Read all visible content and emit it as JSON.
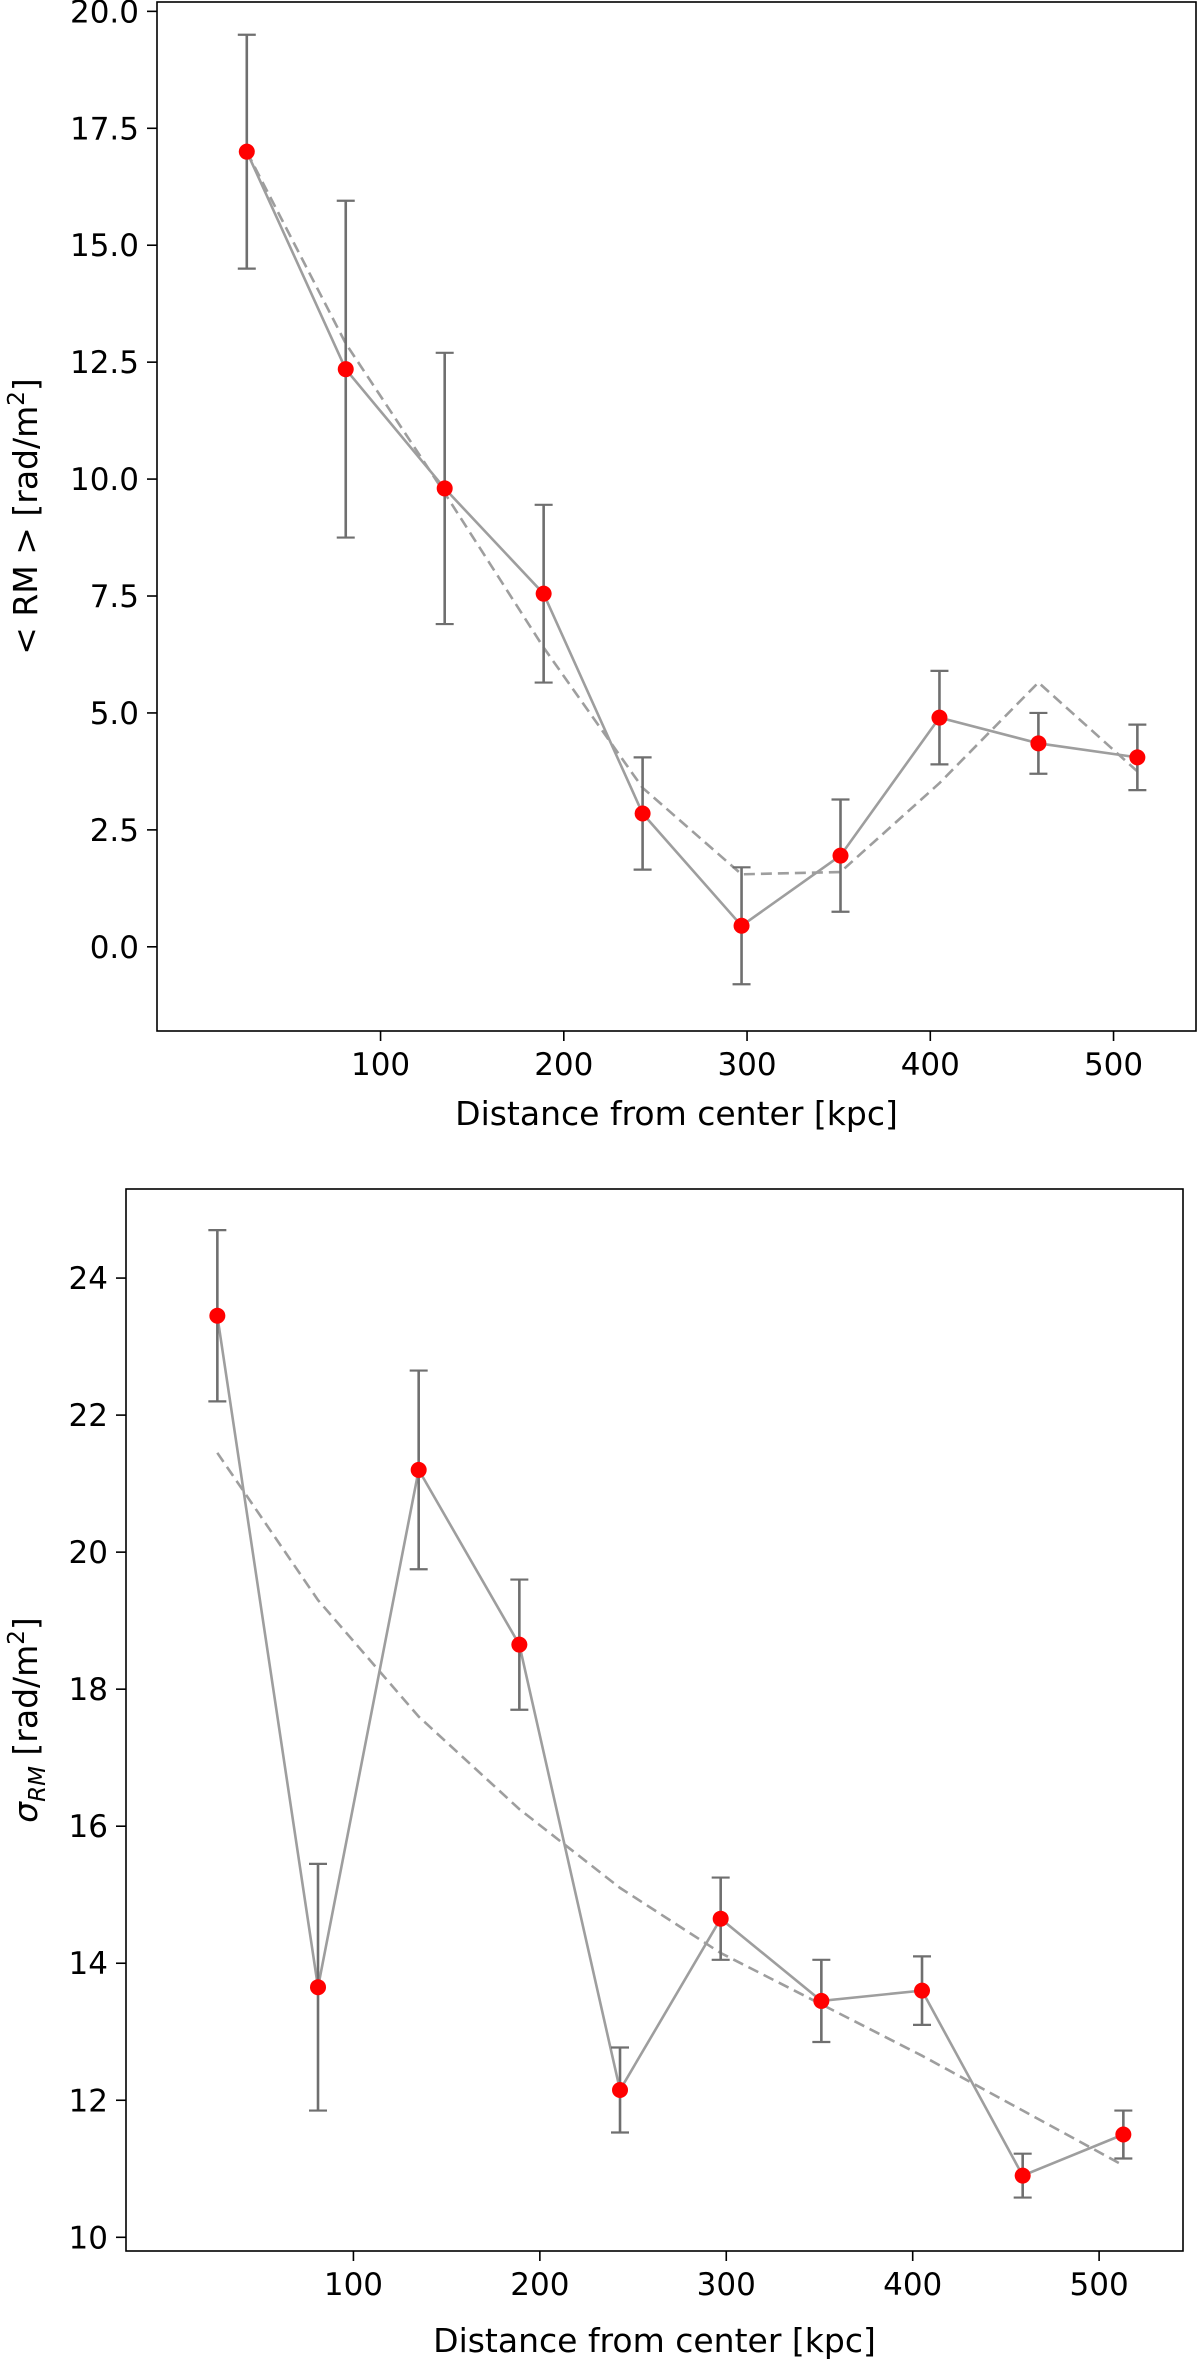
{
  "chart_data": [
    {
      "type": "line",
      "xlabel": "Distance from center [kpc]",
      "ylabel_parts": [
        "< RM > [rad/m",
        "2",
        "]"
      ],
      "xlim": [
        -22,
        545
      ],
      "ylim": [
        -1.8,
        20.2
      ],
      "xticks": [
        100,
        200,
        300,
        400,
        500
      ],
      "yticks": [
        0.0,
        2.5,
        5.0,
        7.5,
        10.0,
        12.5,
        15.0,
        17.5,
        20.0
      ],
      "ytick_decimals": 1,
      "grid": false,
      "series": [
        {
          "style": "solid-with-markers-and-errorbars",
          "color": "#9e9e9e",
          "marker_color": "#ff0000",
          "x": [
            27,
            81,
            135,
            189,
            243,
            297,
            351,
            405,
            459,
            513
          ],
          "y": [
            17.0,
            12.35,
            9.8,
            7.55,
            2.85,
            0.45,
            1.95,
            4.9,
            4.35,
            4.05
          ],
          "yerr": [
            2.5,
            3.6,
            2.9,
            1.9,
            1.2,
            1.25,
            1.2,
            1.0,
            0.65,
            0.7
          ]
        },
        {
          "style": "dashed",
          "color": "#9e9e9e",
          "x": [
            27,
            81,
            135,
            189,
            243,
            297,
            351,
            405,
            459,
            513
          ],
          "y": [
            17.0,
            12.9,
            9.7,
            6.4,
            3.4,
            1.55,
            1.6,
            3.5,
            5.65,
            3.75
          ]
        }
      ]
    },
    {
      "type": "line",
      "xlabel": "Distance from center [kpc]",
      "ylabel_parts": [
        "σ",
        "RM",
        " [rad/m",
        "2",
        "]"
      ],
      "xlim": [
        -22,
        545
      ],
      "ylim": [
        9.8,
        25.3
      ],
      "xticks": [
        100,
        200,
        300,
        400,
        500
      ],
      "yticks": [
        10,
        12,
        14,
        16,
        18,
        20,
        22,
        24
      ],
      "ytick_decimals": 0,
      "grid": false,
      "series": [
        {
          "style": "solid-with-markers-and-errorbars",
          "color": "#9e9e9e",
          "marker_color": "#ff0000",
          "x": [
            27,
            81,
            135,
            189,
            243,
            297,
            351,
            405,
            459,
            513
          ],
          "y": [
            23.45,
            13.65,
            21.2,
            18.65,
            12.15,
            14.65,
            13.45,
            13.6,
            10.9,
            11.5
          ],
          "yerr": [
            1.25,
            1.8,
            1.45,
            0.95,
            0.62,
            0.6,
            0.6,
            0.5,
            0.32,
            0.35
          ]
        },
        {
          "style": "dashed",
          "color": "#9e9e9e",
          "x": [
            27,
            81,
            135,
            189,
            243,
            297,
            351,
            405,
            459,
            513
          ],
          "y": [
            21.45,
            19.3,
            17.6,
            16.25,
            15.1,
            14.15,
            13.4,
            12.65,
            11.85,
            11.05
          ]
        }
      ]
    }
  ]
}
